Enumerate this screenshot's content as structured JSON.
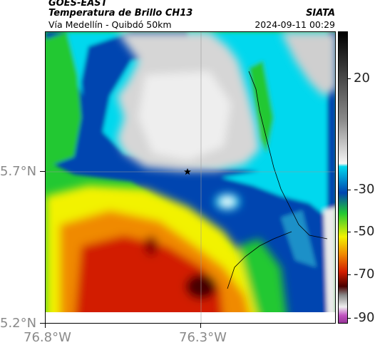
{
  "header": {
    "title_line1": "GOES-EAST",
    "title_line2": "Temperatura de Brillo CH13",
    "subtitle": "Vía Medellín - Quibdó 50km",
    "organization": "SIATA",
    "timestamp": "2024-09-11 00:29"
  },
  "axes": {
    "lat_labels": [
      "5.7°N",
      "5.2°N"
    ],
    "lon_labels": [
      "76.8°W",
      "76.3°W"
    ]
  },
  "colorbar": {
    "labels": [
      "20",
      "-30",
      "-50",
      "-70",
      "-90"
    ],
    "colors": {
      "warm": "#000000",
      "gray": "#d6d6d6",
      "cyan": "#00d8ee",
      "blue": "#0044b0",
      "green": "#22c832",
      "yellow": "#f2f200",
      "orange": "#f08a00",
      "red": "#d21e00",
      "darkred": "#4a0000",
      "magenta": "#c050c0"
    }
  },
  "map": {
    "marker_icon": "star-icon"
  }
}
